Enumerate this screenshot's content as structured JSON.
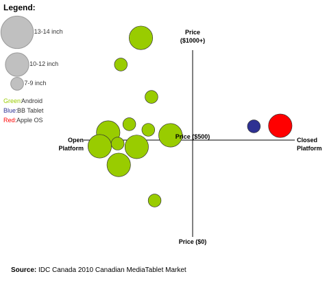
{
  "chart_data": {
    "type": "bubble",
    "legend_title": "Legend:",
    "legend_sizes": {
      "values": [
        13.5,
        11,
        8
      ],
      "labels": [
        "13-14 inch",
        "10-12 inch",
        "7-9 inch"
      ]
    },
    "xlim": [
      -1,
      1
    ],
    "xticks": [
      {
        "value": -1,
        "label": "Open Platform"
      },
      {
        "value": 1,
        "label": "Closed Platform"
      }
    ],
    "ylim": [
      0,
      1000
    ],
    "yticks": [
      {
        "value": 0,
        "label": "Price ($0)"
      },
      {
        "value": 500,
        "label": "Price ($500)"
      },
      {
        "value": 1000,
        "label": "Price ($1000+)"
      }
    ],
    "series": [
      {
        "name": "Android",
        "color_label": "Green:",
        "color": "#99cc00",
        "x": [
          -0.49,
          -0.68,
          -0.39,
          -0.6,
          -0.8,
          -0.42,
          -0.21,
          -0.88,
          -0.71,
          -0.53,
          -0.7,
          -0.36
        ],
        "values": [
          1028,
          890,
          723,
          582,
          539,
          553,
          525,
          468,
          482,
          465,
          372,
          188
        ],
        "sizes": [
          11,
          8,
          8,
          8,
          11,
          8,
          11,
          11,
          8,
          11,
          11,
          8
        ]
      },
      {
        "name": "BB Tablet",
        "color_label": "Blue:",
        "color": "#2e3192",
        "x": [
          0.58
        ],
        "values": [
          571
        ],
        "sizes": [
          8
        ]
      },
      {
        "name": "Apple OS",
        "color_label": "Red:",
        "color": "#ff0000",
        "x": [
          0.83
        ],
        "values": [
          574
        ],
        "sizes": [
          11
        ]
      }
    ],
    "source_label": "Source:",
    "source": "IDC Canada 2010 Canadian MediaTablet Market"
  }
}
